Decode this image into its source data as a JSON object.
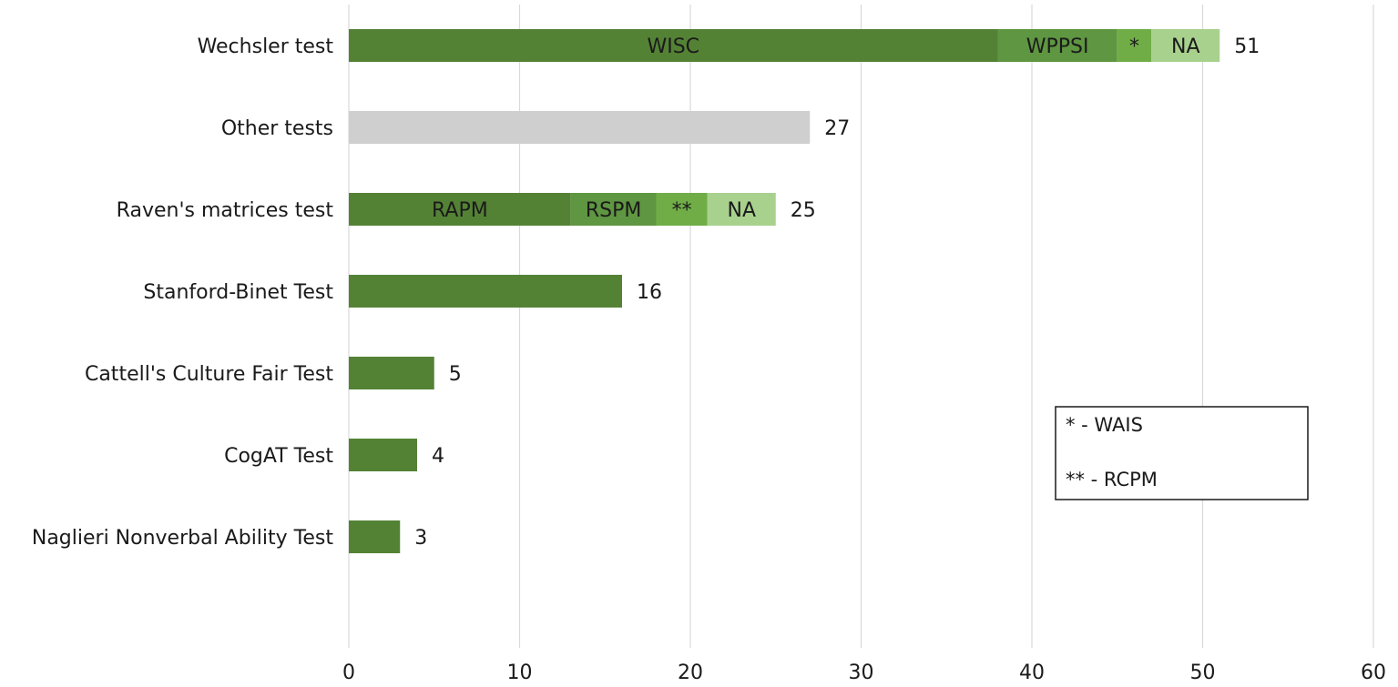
{
  "colors": {
    "dark_green": "#548235",
    "mid_green": "#5f9641",
    "light_green": "#70ad47",
    "pale_green": "#a9d18e",
    "grey": "#cfcfcf",
    "grid": "#d9d9d9"
  },
  "chart_data": {
    "type": "bar",
    "orientation": "horizontal",
    "stacked": true,
    "xlim": [
      0,
      60
    ],
    "xticks": [
      0,
      10,
      20,
      30,
      40,
      50,
      60
    ],
    "grid": true,
    "title": "",
    "xlabel": "",
    "ylabel": "",
    "categories": [
      "Wechsler test",
      "Other tests",
      "Raven's matrices test",
      "Stanford-Binet Test",
      "Cattell's Culture Fair Test",
      "CogAT Test",
      "Naglieri Nonverbal Ability Test"
    ],
    "totals": [
      51,
      27,
      25,
      16,
      5,
      4,
      3
    ],
    "bars": [
      {
        "segments": [
          {
            "label": "WISC",
            "value": 38,
            "color": "#548235"
          },
          {
            "label": "WPPSI",
            "value": 7,
            "color": "#5f9641"
          },
          {
            "label": "*",
            "value": 2,
            "color": "#70ad47"
          },
          {
            "label": "NA",
            "value": 4,
            "color": "#a9d18e"
          }
        ]
      },
      {
        "segments": [
          {
            "label": "",
            "value": 27,
            "color": "#cfcfcf"
          }
        ]
      },
      {
        "segments": [
          {
            "label": "RAPM",
            "value": 13,
            "color": "#548235"
          },
          {
            "label": "RSPM",
            "value": 5,
            "color": "#5f9641"
          },
          {
            "label": "**",
            "value": 3,
            "color": "#70ad47"
          },
          {
            "label": "NA",
            "value": 4,
            "color": "#a9d18e"
          }
        ]
      },
      {
        "segments": [
          {
            "label": "",
            "value": 16,
            "color": "#548235"
          }
        ]
      },
      {
        "segments": [
          {
            "label": "",
            "value": 5,
            "color": "#548235"
          }
        ]
      },
      {
        "segments": [
          {
            "label": "",
            "value": 4,
            "color": "#548235"
          }
        ]
      },
      {
        "segments": [
          {
            "label": "",
            "value": 3,
            "color": "#548235"
          }
        ]
      }
    ],
    "legend": {
      "placement": "right",
      "entries": [
        "* - WAIS",
        "** - RCPM"
      ]
    }
  }
}
